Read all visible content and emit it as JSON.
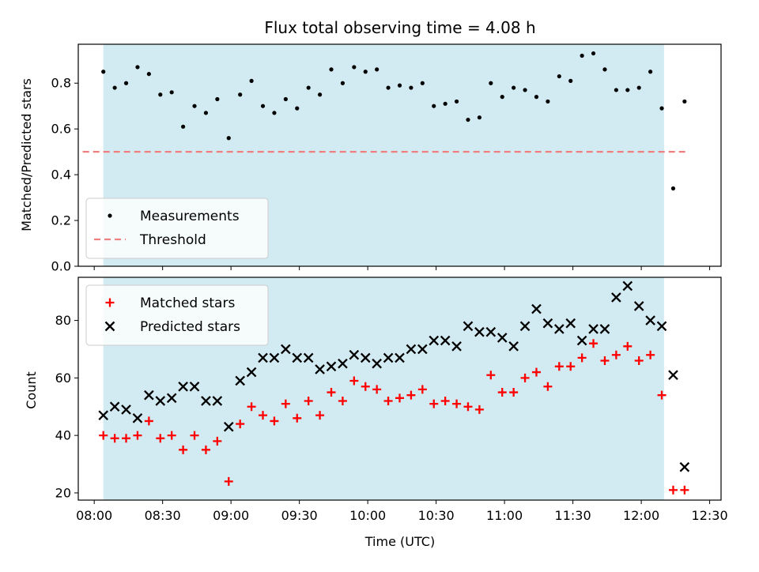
{
  "chart_data": {
    "title": "Flux total observing time = 4.08 h",
    "xlabel": "Time (UTC)",
    "x_ticks": [
      "08:00",
      "08:30",
      "09:00",
      "09:30",
      "10:00",
      "10:30",
      "11:00",
      "11:30",
      "12:00",
      "12:30"
    ],
    "x_range": [
      "07:53",
      "12:35"
    ],
    "observing_window": {
      "start": "08:04",
      "end": "12:10",
      "color": "#add8e6"
    },
    "panels": [
      {
        "type": "scatter",
        "ylabel": "Matched/Predicted stars",
        "ylim": [
          0,
          0.97
        ],
        "y_ticks": [
          "0.0",
          "0.2",
          "0.4",
          "0.6",
          "0.8"
        ],
        "legend_position": "lower-left",
        "threshold": {
          "name": "Threshold",
          "value": 0.5,
          "color": "#f08080",
          "style": "dashed"
        },
        "series": [
          {
            "name": "Measurements",
            "color": "#000000",
            "marker": "dot",
            "points": [
              [
                "08:04",
                0.85
              ],
              [
                "08:09",
                0.78
              ],
              [
                "08:14",
                0.8
              ],
              [
                "08:19",
                0.87
              ],
              [
                "08:24",
                0.84
              ],
              [
                "08:29",
                0.75
              ],
              [
                "08:34",
                0.76
              ],
              [
                "08:39",
                0.61
              ],
              [
                "08:44",
                0.7
              ],
              [
                "08:49",
                0.67
              ],
              [
                "08:54",
                0.73
              ],
              [
                "08:59",
                0.56
              ],
              [
                "09:04",
                0.75
              ],
              [
                "09:09",
                0.81
              ],
              [
                "09:14",
                0.7
              ],
              [
                "09:19",
                0.67
              ],
              [
                "09:24",
                0.73
              ],
              [
                "09:29",
                0.69
              ],
              [
                "09:34",
                0.78
              ],
              [
                "09:39",
                0.75
              ],
              [
                "09:44",
                0.86
              ],
              [
                "09:49",
                0.8
              ],
              [
                "09:54",
                0.87
              ],
              [
                "09:59",
                0.85
              ],
              [
                "10:04",
                0.86
              ],
              [
                "10:09",
                0.78
              ],
              [
                "10:14",
                0.79
              ],
              [
                "10:19",
                0.78
              ],
              [
                "10:24",
                0.8
              ],
              [
                "10:29",
                0.7
              ],
              [
                "10:34",
                0.71
              ],
              [
                "10:39",
                0.72
              ],
              [
                "10:44",
                0.64
              ],
              [
                "10:49",
                0.65
              ],
              [
                "10:54",
                0.8
              ],
              [
                "10:59",
                0.74
              ],
              [
                "11:04",
                0.78
              ],
              [
                "11:09",
                0.77
              ],
              [
                "11:14",
                0.74
              ],
              [
                "11:19",
                0.72
              ],
              [
                "11:24",
                0.83
              ],
              [
                "11:29",
                0.81
              ],
              [
                "11:34",
                0.92
              ],
              [
                "11:39",
                0.93
              ],
              [
                "11:44",
                0.86
              ],
              [
                "11:49",
                0.77
              ],
              [
                "11:54",
                0.77
              ],
              [
                "11:59",
                0.78
              ],
              [
                "12:04",
                0.85
              ],
              [
                "12:09",
                0.69
              ],
              [
                "12:14",
                0.34
              ],
              [
                "12:19",
                0.72
              ]
            ]
          }
        ]
      },
      {
        "type": "scatter",
        "ylabel": "Count",
        "ylim": [
          17.5,
          95
        ],
        "y_ticks": [
          "20",
          "40",
          "60",
          "80"
        ],
        "legend_position": "upper-left",
        "series": [
          {
            "name": "Matched stars",
            "color": "#ff0000",
            "marker": "plus",
            "points": [
              [
                "08:04",
                40
              ],
              [
                "08:09",
                39
              ],
              [
                "08:14",
                39
              ],
              [
                "08:19",
                40
              ],
              [
                "08:24",
                45
              ],
              [
                "08:29",
                39
              ],
              [
                "08:34",
                40
              ],
              [
                "08:39",
                35
              ],
              [
                "08:44",
                40
              ],
              [
                "08:49",
                35
              ],
              [
                "08:54",
                38
              ],
              [
                "08:59",
                24
              ],
              [
                "09:04",
                44
              ],
              [
                "09:09",
                50
              ],
              [
                "09:14",
                47
              ],
              [
                "09:19",
                45
              ],
              [
                "09:24",
                51
              ],
              [
                "09:29",
                46
              ],
              [
                "09:34",
                52
              ],
              [
                "09:39",
                47
              ],
              [
                "09:44",
                55
              ],
              [
                "09:49",
                52
              ],
              [
                "09:54",
                59
              ],
              [
                "09:59",
                57
              ],
              [
                "10:04",
                56
              ],
              [
                "10:09",
                52
              ],
              [
                "10:14",
                53
              ],
              [
                "10:19",
                54
              ],
              [
                "10:24",
                56
              ],
              [
                "10:29",
                51
              ],
              [
                "10:34",
                52
              ],
              [
                "10:39",
                51
              ],
              [
                "10:44",
                50
              ],
              [
                "10:49",
                49
              ],
              [
                "10:54",
                61
              ],
              [
                "10:59",
                55
              ],
              [
                "11:04",
                55
              ],
              [
                "11:09",
                60
              ],
              [
                "11:14",
                62
              ],
              [
                "11:19",
                57
              ],
              [
                "11:24",
                64
              ],
              [
                "11:29",
                64
              ],
              [
                "11:34",
                67
              ],
              [
                "11:39",
                72
              ],
              [
                "11:44",
                66
              ],
              [
                "11:49",
                68
              ],
              [
                "11:54",
                71
              ],
              [
                "11:59",
                66
              ],
              [
                "12:04",
                68
              ],
              [
                "12:09",
                54
              ],
              [
                "12:14",
                21
              ],
              [
                "12:19",
                21
              ]
            ]
          },
          {
            "name": "Predicted stars",
            "color": "#000000",
            "marker": "x",
            "points": [
              [
                "08:04",
                47
              ],
              [
                "08:09",
                50
              ],
              [
                "08:14",
                49
              ],
              [
                "08:19",
                46
              ],
              [
                "08:24",
                54
              ],
              [
                "08:29",
                52
              ],
              [
                "08:34",
                53
              ],
              [
                "08:39",
                57
              ],
              [
                "08:44",
                57
              ],
              [
                "08:49",
                52
              ],
              [
                "08:54",
                52
              ],
              [
                "08:59",
                43
              ],
              [
                "09:04",
                59
              ],
              [
                "09:09",
                62
              ],
              [
                "09:14",
                67
              ],
              [
                "09:19",
                67
              ],
              [
                "09:24",
                70
              ],
              [
                "09:29",
                67
              ],
              [
                "09:34",
                67
              ],
              [
                "09:39",
                63
              ],
              [
                "09:44",
                64
              ],
              [
                "09:49",
                65
              ],
              [
                "09:54",
                68
              ],
              [
                "09:59",
                67
              ],
              [
                "10:04",
                65
              ],
              [
                "10:09",
                67
              ],
              [
                "10:14",
                67
              ],
              [
                "10:19",
                70
              ],
              [
                "10:24",
                70
              ],
              [
                "10:29",
                73
              ],
              [
                "10:34",
                73
              ],
              [
                "10:39",
                71
              ],
              [
                "10:44",
                78
              ],
              [
                "10:49",
                76
              ],
              [
                "10:54",
                76
              ],
              [
                "10:59",
                74
              ],
              [
                "11:04",
                71
              ],
              [
                "11:09",
                78
              ],
              [
                "11:14",
                84
              ],
              [
                "11:19",
                79
              ],
              [
                "11:24",
                77
              ],
              [
                "11:29",
                79
              ],
              [
                "11:34",
                73
              ],
              [
                "11:39",
                77
              ],
              [
                "11:44",
                77
              ],
              [
                "11:49",
                88
              ],
              [
                "11:54",
                92
              ],
              [
                "11:59",
                85
              ],
              [
                "12:04",
                80
              ],
              [
                "12:09",
                78
              ],
              [
                "12:14",
                61
              ],
              [
                "12:19",
                29
              ]
            ]
          }
        ]
      }
    ]
  }
}
